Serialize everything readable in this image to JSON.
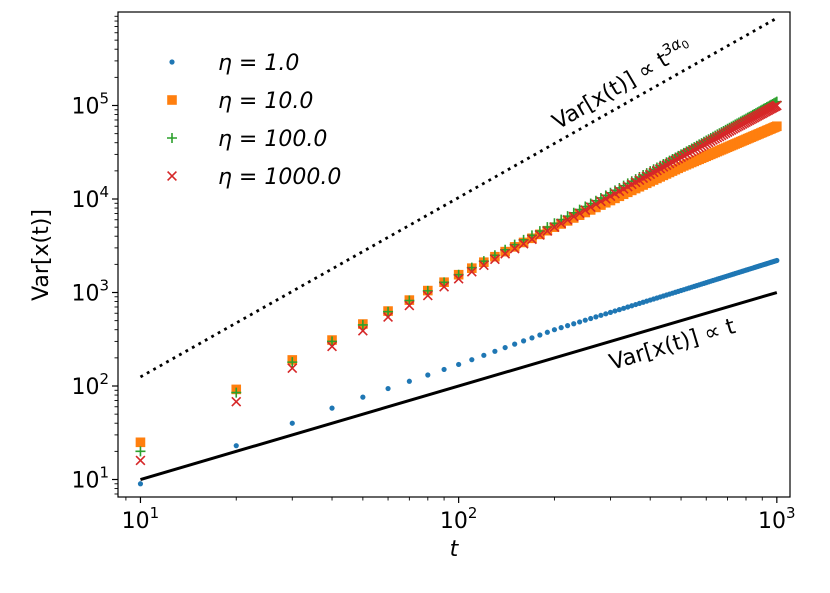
{
  "chart_data": {
    "type": "scatter",
    "scale": {
      "x": "log",
      "y": "log"
    },
    "xlabel": "t",
    "ylabel": "Var[x(t)]",
    "xlim": [
      8.5,
      1100
    ],
    "ylim": [
      6.5,
      1000000
    ],
    "x_ticks": [
      {
        "value": 10,
        "base": "10",
        "exp": "1"
      },
      {
        "value": 100,
        "base": "10",
        "exp": "2"
      },
      {
        "value": 1000,
        "base": "10",
        "exp": "3"
      }
    ],
    "y_ticks": [
      {
        "value": 10,
        "base": "10",
        "exp": "1"
      },
      {
        "value": 100,
        "base": "10",
        "exp": "2"
      },
      {
        "value": 1000,
        "base": "10",
        "exp": "3"
      },
      {
        "value": 10000,
        "base": "10",
        "exp": "4"
      },
      {
        "value": 100000,
        "base": "10",
        "exp": "5"
      }
    ],
    "x_step": 10,
    "x_start": 10,
    "x_end": 1000,
    "series": [
      {
        "name": "η = 1.0",
        "legend_label": "η = 1.0",
        "marker": "dot",
        "color": "#1f77b4",
        "model": "power",
        "anchors": [
          [
            10,
            9
          ],
          [
            20,
            23
          ],
          [
            30,
            40
          ],
          [
            40,
            58
          ],
          [
            50,
            76
          ],
          [
            100,
            170
          ],
          [
            200,
            400
          ],
          [
            500,
            1050
          ],
          [
            1000,
            2200
          ]
        ]
      },
      {
        "name": "η = 10.0",
        "legend_label": "η = 10.0",
        "marker": "square",
        "color": "#ff7f0e",
        "anchors": [
          [
            10,
            25
          ],
          [
            20,
            92
          ],
          [
            30,
            190
          ],
          [
            40,
            310
          ],
          [
            50,
            460
          ],
          [
            100,
            1550
          ],
          [
            200,
            5000
          ],
          [
            500,
            22000
          ],
          [
            1000,
            60000
          ]
        ]
      },
      {
        "name": "η = 100.0",
        "legend_label": "η = 100.0",
        "marker": "plus",
        "color": "#2ca02c",
        "anchors": [
          [
            10,
            20
          ],
          [
            20,
            85
          ],
          [
            30,
            180
          ],
          [
            40,
            300
          ],
          [
            50,
            450
          ],
          [
            100,
            1550
          ],
          [
            200,
            5500
          ],
          [
            500,
            30000
          ],
          [
            1000,
            110000
          ]
        ]
      },
      {
        "name": "η = 1000.0",
        "legend_label": "η = 1000.0",
        "marker": "x",
        "color": "#d62728",
        "anchors": [
          [
            10,
            16
          ],
          [
            20,
            68
          ],
          [
            30,
            155
          ],
          [
            40,
            265
          ],
          [
            50,
            390
          ],
          [
            100,
            1400
          ],
          [
            200,
            5000
          ],
          [
            500,
            28000
          ],
          [
            1000,
            100000
          ]
        ]
      }
    ],
    "reference_lines": [
      {
        "name": "t^3α0 reference",
        "style": "dotted",
        "points": [
          [
            10,
            125
          ],
          [
            1000,
            860000
          ]
        ]
      },
      {
        "name": "t reference",
        "style": "solid",
        "points": [
          [
            10,
            10
          ],
          [
            1000,
            1000
          ]
        ]
      }
    ],
    "annotations": {
      "upper": {
        "prefix": "Var[x(t)] ∝ t",
        "sup": "3α",
        "sub": "0"
      },
      "lower": {
        "text": "Var[x(t)] ∝ t"
      }
    },
    "legend_position": "upper-left"
  }
}
